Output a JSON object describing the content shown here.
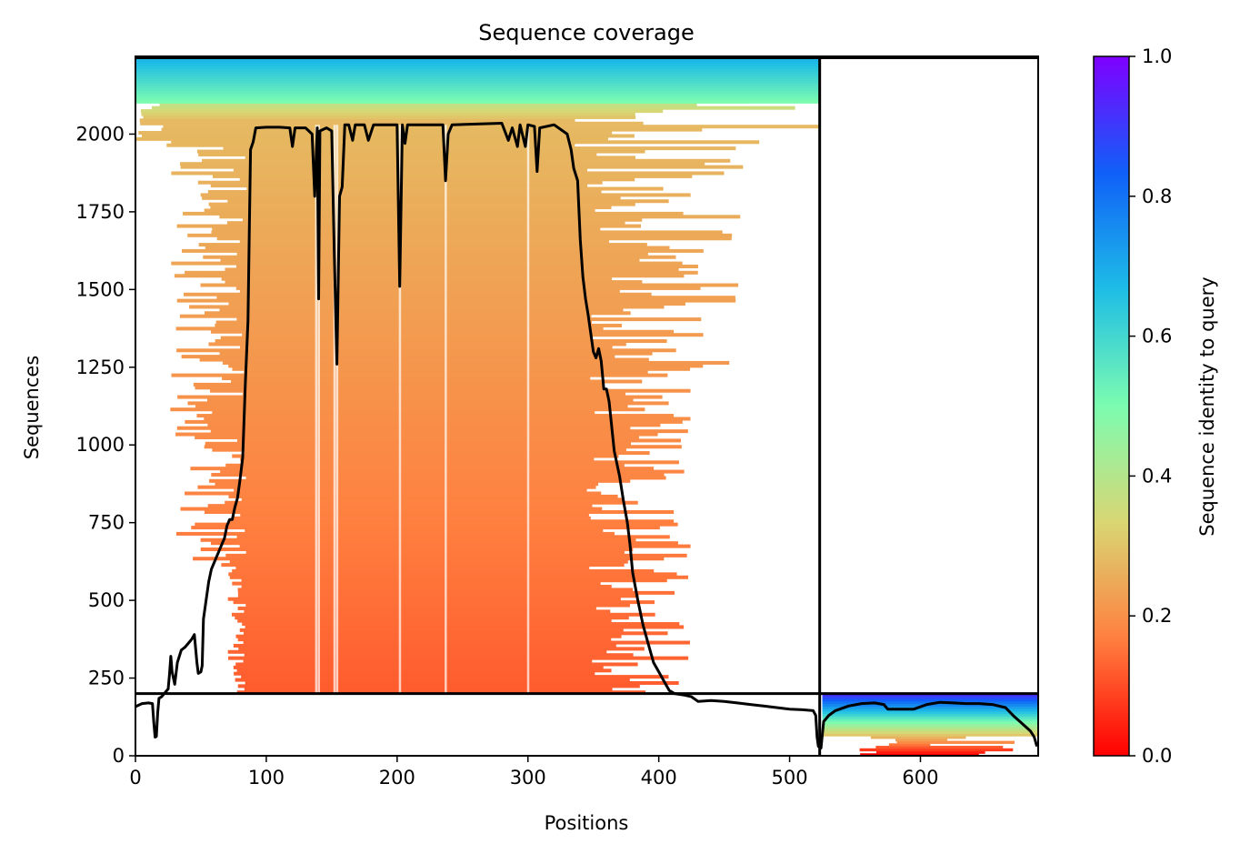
{
  "chart_data": {
    "type": "heatmap",
    "title": "Sequence coverage",
    "xlabel": "Positions",
    "ylabel": "Sequences",
    "xlim": [
      0,
      690
    ],
    "ylim": [
      0,
      2250
    ],
    "x_ticks": [
      0,
      100,
      200,
      300,
      400,
      500,
      600
    ],
    "y_ticks": [
      0,
      250,
      500,
      750,
      1000,
      1250,
      1500,
      1750,
      2000
    ],
    "grid": false,
    "chain_break_position": 523,
    "paired_rows_boundary": 200,
    "colormap": "rainbow_r",
    "colorbar": {
      "label": "Sequence identity to query",
      "range": [
        0.0,
        1.0
      ],
      "ticks": [
        0.0,
        0.2,
        0.4,
        0.6,
        0.8,
        1.0
      ],
      "tick_labels": [
        "0.0",
        "0.2",
        "0.4",
        "0.6",
        "0.8",
        "1.0"
      ],
      "stops": [
        "#ff0000",
        "#ff7f3f",
        "#d9d673",
        "#7cfcb0",
        "#1ebde6",
        "#1060f8",
        "#7f00ff"
      ]
    },
    "coverage_line_color": "#000000",
    "coverage_line": [
      [
        0,
        158
      ],
      [
        5,
        168
      ],
      [
        10,
        170
      ],
      [
        13,
        168
      ],
      [
        14,
        110
      ],
      [
        15,
        60
      ],
      [
        16,
        62
      ],
      [
        17,
        140
      ],
      [
        18,
        185
      ],
      [
        20,
        190
      ],
      [
        22,
        200
      ],
      [
        25,
        215
      ],
      [
        26,
        260
      ],
      [
        27,
        320
      ],
      [
        28,
        270
      ],
      [
        30,
        230
      ],
      [
        32,
        300
      ],
      [
        35,
        340
      ],
      [
        38,
        350
      ],
      [
        40,
        360
      ],
      [
        43,
        375
      ],
      [
        45,
        390
      ],
      [
        47,
        300
      ],
      [
        48,
        265
      ],
      [
        50,
        270
      ],
      [
        51,
        290
      ],
      [
        52,
        440
      ],
      [
        54,
        500
      ],
      [
        56,
        560
      ],
      [
        58,
        600
      ],
      [
        62,
        640
      ],
      [
        66,
        680
      ],
      [
        68,
        700
      ],
      [
        70,
        740
      ],
      [
        72,
        760
      ],
      [
        74,
        760
      ],
      [
        76,
        800
      ],
      [
        78,
        830
      ],
      [
        80,
        890
      ],
      [
        82,
        960
      ],
      [
        84,
        1200
      ],
      [
        86,
        1400
      ],
      [
        87,
        1680
      ],
      [
        88,
        1950
      ],
      [
        90,
        1975
      ],
      [
        92,
        2020
      ],
      [
        100,
        2022
      ],
      [
        110,
        2022
      ],
      [
        118,
        2020
      ],
      [
        120,
        1960
      ],
      [
        122,
        2020
      ],
      [
        130,
        2020
      ],
      [
        135,
        2000
      ],
      [
        137,
        1800
      ],
      [
        139,
        2020
      ],
      [
        140,
        1470
      ],
      [
        141,
        2010
      ],
      [
        146,
        2020
      ],
      [
        150,
        2010
      ],
      [
        152,
        1620
      ],
      [
        154,
        1260
      ],
      [
        156,
        1800
      ],
      [
        158,
        1830
      ],
      [
        160,
        2030
      ],
      [
        163,
        2030
      ],
      [
        166,
        1980
      ],
      [
        168,
        2030
      ],
      [
        175,
        2030
      ],
      [
        178,
        1980
      ],
      [
        182,
        2030
      ],
      [
        200,
        2030
      ],
      [
        202,
        1510
      ],
      [
        204,
        2030
      ],
      [
        206,
        1970
      ],
      [
        208,
        2030
      ],
      [
        235,
        2030
      ],
      [
        237,
        1850
      ],
      [
        239,
        2000
      ],
      [
        242,
        2030
      ],
      [
        280,
        2035
      ],
      [
        285,
        1980
      ],
      [
        288,
        2020
      ],
      [
        292,
        1960
      ],
      [
        294,
        2030
      ],
      [
        298,
        1960
      ],
      [
        300,
        2030
      ],
      [
        305,
        2025
      ],
      [
        307,
        1880
      ],
      [
        309,
        2020
      ],
      [
        320,
        2030
      ],
      [
        330,
        2000
      ],
      [
        333,
        1950
      ],
      [
        335,
        1890
      ],
      [
        338,
        1850
      ],
      [
        340,
        1660
      ],
      [
        342,
        1540
      ],
      [
        344,
        1470
      ],
      [
        346,
        1420
      ],
      [
        348,
        1360
      ],
      [
        350,
        1300
      ],
      [
        352,
        1280
      ],
      [
        354,
        1310
      ],
      [
        356,
        1270
      ],
      [
        358,
        1180
      ],
      [
        360,
        1180
      ],
      [
        362,
        1140
      ],
      [
        366,
        980
      ],
      [
        370,
        900
      ],
      [
        373,
        820
      ],
      [
        376,
        750
      ],
      [
        378,
        680
      ],
      [
        380,
        590
      ],
      [
        384,
        500
      ],
      [
        388,
        420
      ],
      [
        392,
        360
      ],
      [
        396,
        300
      ],
      [
        400,
        270
      ],
      [
        404,
        240
      ],
      [
        408,
        210
      ],
      [
        412,
        200
      ],
      [
        420,
        195
      ],
      [
        425,
        190
      ],
      [
        430,
        175
      ],
      [
        440,
        178
      ],
      [
        450,
        175
      ],
      [
        460,
        170
      ],
      [
        470,
        165
      ],
      [
        480,
        160
      ],
      [
        490,
        155
      ],
      [
        500,
        150
      ],
      [
        510,
        148
      ],
      [
        518,
        145
      ],
      [
        520,
        130
      ],
      [
        521,
        60
      ],
      [
        522,
        30
      ],
      [
        524,
        25
      ],
      [
        526,
        110
      ],
      [
        530,
        130
      ],
      [
        535,
        145
      ],
      [
        545,
        160
      ],
      [
        555,
        168
      ],
      [
        565,
        170
      ],
      [
        572,
        165
      ],
      [
        575,
        150
      ],
      [
        585,
        150
      ],
      [
        595,
        150
      ],
      [
        605,
        165
      ],
      [
        615,
        172
      ],
      [
        625,
        170
      ],
      [
        635,
        168
      ],
      [
        645,
        168
      ],
      [
        655,
        165
      ],
      [
        665,
        155
      ],
      [
        672,
        125
      ],
      [
        676,
        110
      ],
      [
        680,
        95
      ],
      [
        684,
        80
      ],
      [
        687,
        60
      ],
      [
        689,
        30
      ]
    ]
  }
}
